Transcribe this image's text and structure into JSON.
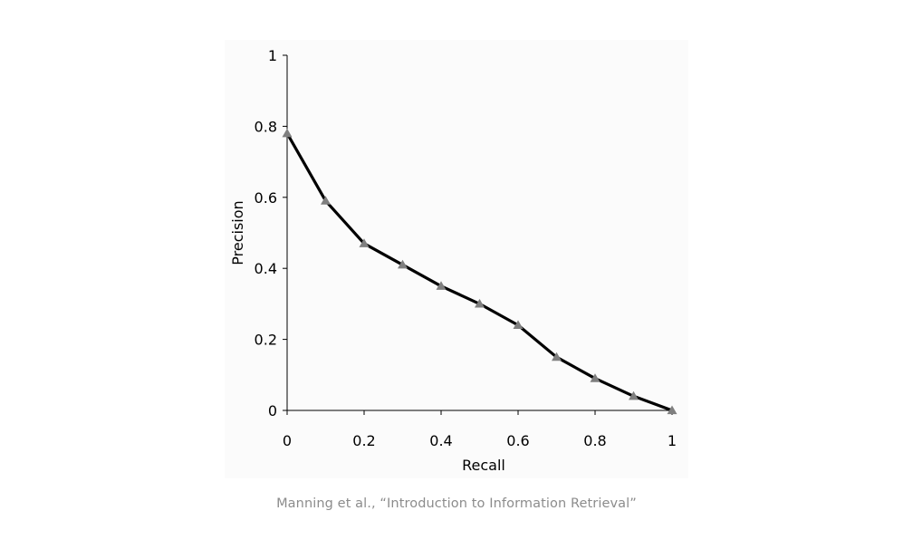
{
  "caption": "Manning et al., “Introduction to Information Retrieval”",
  "chart_data": {
    "type": "line",
    "title": "",
    "xlabel": "Recall",
    "ylabel": "Precision",
    "xlim": [
      0,
      1
    ],
    "ylim": [
      0,
      1
    ],
    "x_ticks": [
      "0",
      "0.2",
      "0.4",
      "0.6",
      "0.8",
      "1"
    ],
    "y_ticks": [
      "0",
      "0.2",
      "0.4",
      "0.6",
      "0.8",
      "1"
    ],
    "grid": false,
    "legend": "none",
    "marker": "triangle",
    "line_color": "#000000",
    "marker_color": "#7f7f7f",
    "plot_background": "#fbfbfb",
    "x": [
      0,
      0.1,
      0.2,
      0.3,
      0.4,
      0.5,
      0.6,
      0.7,
      0.8,
      0.9,
      1.0
    ],
    "y": [
      0.78,
      0.59,
      0.47,
      0.41,
      0.35,
      0.3,
      0.24,
      0.15,
      0.09,
      0.04,
      0.0
    ]
  }
}
